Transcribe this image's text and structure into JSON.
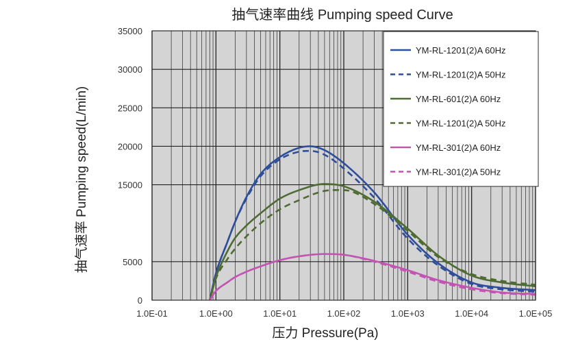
{
  "chart_data": {
    "type": "line",
    "title": "抽气速率曲线 Pumping speed Curve",
    "xlabel": "压力 Pressure(Pa)",
    "ylabel": "抽气速率 Pumping speed(L/min)",
    "x_scale": "log",
    "xlim": [
      0.1,
      100000
    ],
    "ylim": [
      0,
      35000
    ],
    "grid": true,
    "background": "#d4d4d4",
    "legend_position": "top-right",
    "x_ticks": [
      {
        "value": 0.1,
        "label": "1.0E-01"
      },
      {
        "value": 1,
        "label": "1.0E+00"
      },
      {
        "value": 10,
        "label": "1.0E+01"
      },
      {
        "value": 100,
        "label": "1.0E+02"
      },
      {
        "value": 1000,
        "label": "1.0E+03"
      },
      {
        "value": 10000,
        "label": "1.0E+04"
      },
      {
        "value": 100000,
        "label": "1.0E+05"
      }
    ],
    "y_ticks": [
      {
        "value": 0,
        "label": "0"
      },
      {
        "value": 5000,
        "label": "5000"
      },
      {
        "value": 15000,
        "label": "15000"
      },
      {
        "value": 20000,
        "label": "20000"
      },
      {
        "value": 25000,
        "label": "25000"
      },
      {
        "value": 30000,
        "label": "30000"
      },
      {
        "value": 35000,
        "label": "35000"
      }
    ],
    "series": [
      {
        "name": "YM-RL-1201(2)A 60Hz",
        "color": "#2e4e9a",
        "dash": "solid",
        "x": [
          0.8,
          1,
          1.5,
          2,
          3,
          5,
          10,
          20,
          30,
          50,
          100,
          300,
          1000,
          3000,
          10000,
          30000,
          100000
        ],
        "y": [
          0,
          3500,
          7500,
          10200,
          13400,
          16400,
          18600,
          19800,
          20000,
          19500,
          17800,
          14000,
          8500,
          4800,
          2300,
          1600,
          1300
        ]
      },
      {
        "name": "YM-RL-1201(2)A 50Hz",
        "color": "#2e4e9a",
        "dash": "dashed",
        "x": [
          0.8,
          1,
          1.5,
          2,
          3,
          5,
          10,
          20,
          30,
          50,
          100,
          300,
          1000,
          3000,
          10000,
          30000,
          100000
        ],
        "y": [
          0,
          3500,
          7500,
          10200,
          13200,
          16100,
          18300,
          19300,
          19400,
          18900,
          17100,
          13300,
          8000,
          4500,
          2100,
          1400,
          1100
        ]
      },
      {
        "name": "YM-RL-601(2)A 60Hz",
        "color": "#4e6b33",
        "dash": "solid",
        "x": [
          0.8,
          1,
          1.5,
          2,
          3,
          5,
          10,
          20,
          50,
          100,
          300,
          1000,
          3000,
          10000,
          30000,
          100000
        ],
        "y": [
          0,
          3000,
          6300,
          8100,
          9700,
          11300,
          13200,
          14300,
          15100,
          14800,
          12800,
          9300,
          5800,
          3200,
          2300,
          1800
        ]
      },
      {
        "name": "YM-RL-1201(2)A 50Hz",
        "color": "#4e6b33",
        "dash": "dashed",
        "x": [
          0.8,
          1,
          1.5,
          2,
          3,
          5,
          10,
          20,
          50,
          100,
          300,
          1000,
          3000,
          10000,
          30000,
          100000
        ],
        "y": [
          0,
          2800,
          5300,
          6700,
          8300,
          10000,
          11800,
          13000,
          14200,
          14300,
          12500,
          9000,
          5600,
          3400,
          2500,
          2000
        ]
      },
      {
        "name": "YM-RL-301(2)A 60Hz",
        "color": "#c354b3",
        "dash": "solid",
        "x": [
          0.8,
          1,
          1.5,
          2,
          3,
          5,
          10,
          20,
          50,
          100,
          300,
          1000,
          3000,
          10000,
          30000,
          100000
        ],
        "y": [
          0,
          1200,
          2300,
          3000,
          3700,
          4400,
          5200,
          5700,
          6000,
          5900,
          5100,
          3900,
          2600,
          1600,
          1000,
          800
        ]
      },
      {
        "name": "YM-RL-301(2)A 50Hz",
        "color": "#c354b3",
        "dash": "dashed",
        "x": [
          0.8,
          1,
          1.5,
          2,
          3,
          5,
          10,
          20,
          50,
          100,
          300,
          1000,
          3000,
          10000,
          30000,
          100000
        ],
        "y": [
          0,
          1200,
          2300,
          3000,
          3700,
          4400,
          5200,
          5700,
          6000,
          5900,
          5000,
          3700,
          2400,
          1400,
          900,
          700
        ]
      }
    ]
  }
}
